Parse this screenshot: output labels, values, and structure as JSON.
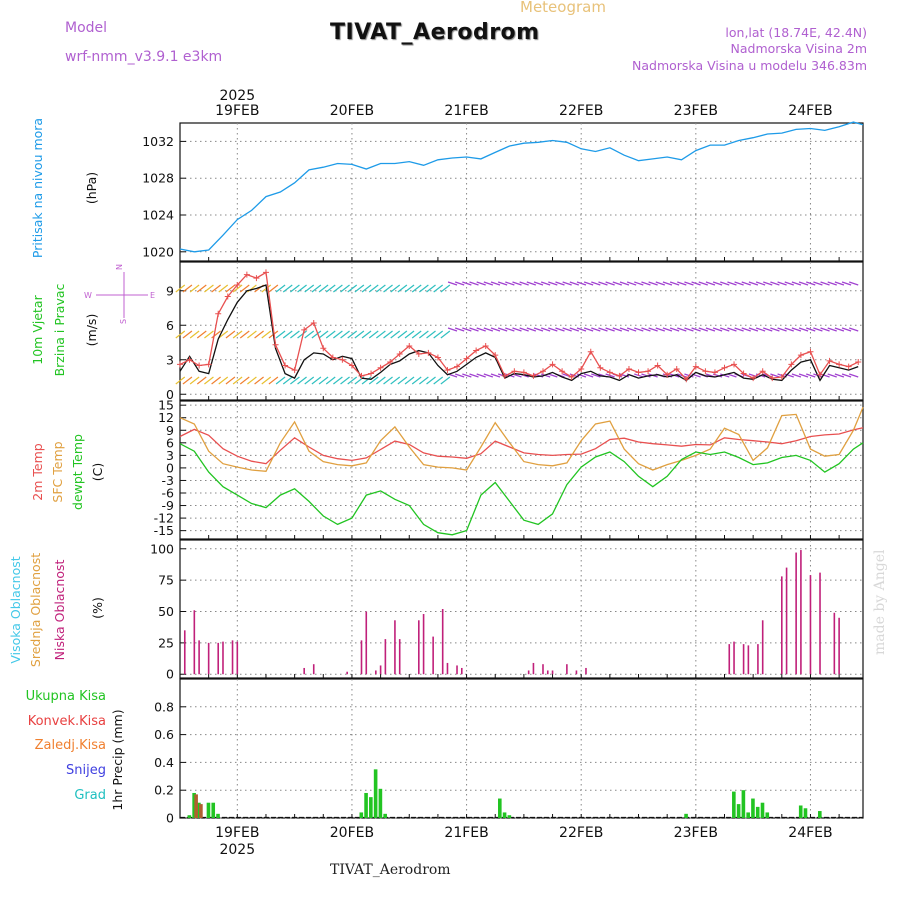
{
  "header": {
    "kind": "Meteogram",
    "title": "TIVAT_Aerodrom",
    "model_label": "Model",
    "model_name": "wrf-nmm_v3.9.1  e3km",
    "lonlat": "lon,lat (18.74E, 42.4N)",
    "nadmorska": "Nadmorska Visina 2m",
    "nadmorska_model": "Nadmorska Visina u modelu 346.83m"
  },
  "footer": {
    "station": "TIVAT_Aerodrom",
    "credit": "made by Angel"
  },
  "time_axis": {
    "year": "2025",
    "days": [
      "19FEB",
      "20FEB",
      "21FEB",
      "22FEB",
      "23FEB",
      "24FEB"
    ],
    "range_hours": [
      -12,
      131
    ]
  },
  "colors": {
    "pressure": "#1e9be8",
    "temp2m": "#e85050",
    "sfc": "#e0a040",
    "dew": "#22c422",
    "wind": "#111111",
    "gust": "#e85050",
    "cloud_high": "#44c8e8",
    "cloud_mid": "#e0a040",
    "cloud_low": "#c0207a",
    "rain": "#22c422",
    "conv": "#e84040",
    "frz": "#f08030",
    "snow": "#4040e0",
    "grad": "#20c0c0"
  },
  "chart_data": [
    {
      "id": "pressure",
      "type": "line",
      "ylabel": "Pritisak na nivou mora",
      "unit": "(hPa)",
      "ylim": [
        1019,
        1034
      ],
      "yticks": [
        1020,
        1024,
        1028,
        1032
      ],
      "series": [
        {
          "name": "pressure",
          "x": [
            -12,
            -9,
            -6,
            -3,
            0,
            3,
            6,
            9,
            12,
            15,
            18,
            21,
            24,
            27,
            30,
            33,
            36,
            39,
            42,
            45,
            48,
            51,
            54,
            57,
            60,
            63,
            66,
            69,
            72,
            75,
            78,
            81,
            84,
            87,
            90,
            93,
            96,
            99,
            102,
            105,
            108,
            111,
            114,
            117,
            120,
            123,
            126,
            129,
            131
          ],
          "y": [
            1020.3,
            1020.0,
            1020.2,
            1021.8,
            1023.5,
            1024.5,
            1026.0,
            1026.5,
            1027.5,
            1028.9,
            1029.2,
            1029.6,
            1029.5,
            1029.0,
            1029.6,
            1029.6,
            1029.8,
            1029.4,
            1030.0,
            1030.2,
            1030.3,
            1030.1,
            1030.8,
            1031.5,
            1031.8,
            1031.9,
            1032.1,
            1031.9,
            1031.2,
            1030.9,
            1031.3,
            1030.5,
            1029.9,
            1030.1,
            1030.3,
            1030.0,
            1031.0,
            1031.6,
            1031.6,
            1032.1,
            1032.4,
            1032.8,
            1032.9,
            1033.3,
            1033.4,
            1033.2,
            1033.6,
            1034.1,
            1033.8
          ]
        }
      ]
    },
    {
      "id": "wind",
      "type": "line",
      "ylabel": "10m Vjetar Brzina i Pravac",
      "unit": "(m/s)",
      "ylim": [
        -0.5,
        11.5
      ],
      "yticks": [
        0,
        3,
        6,
        9
      ],
      "compass": [
        "N",
        "W",
        "E",
        "S"
      ],
      "series": [
        {
          "name": "speed",
          "x": [
            -12,
            -10,
            -8,
            -6,
            -4,
            -2,
            0,
            2,
            4,
            6,
            8,
            10,
            12,
            14,
            16,
            18,
            20,
            22,
            24,
            26,
            28,
            30,
            32,
            34,
            36,
            38,
            40,
            42,
            44,
            46,
            48,
            50,
            52,
            54,
            56,
            58,
            60,
            62,
            64,
            66,
            68,
            70,
            72,
            74,
            76,
            78,
            80,
            82,
            84,
            86,
            88,
            90,
            92,
            94,
            96,
            98,
            100,
            102,
            104,
            106,
            108,
            110,
            112,
            114,
            116,
            118,
            120,
            122,
            124,
            126,
            128,
            130
          ],
          "y": [
            2.0,
            3.3,
            2.0,
            1.8,
            4.8,
            6.5,
            8.0,
            9.0,
            9.2,
            9.5,
            4.0,
            1.8,
            1.4,
            3.0,
            3.6,
            3.5,
            3.0,
            3.3,
            3.1,
            1.4,
            1.3,
            1.9,
            2.6,
            2.9,
            3.5,
            3.8,
            3.6,
            2.5,
            1.7,
            2.0,
            2.6,
            3.2,
            3.6,
            3.2,
            1.4,
            1.8,
            1.7,
            1.5,
            1.6,
            1.9,
            1.5,
            1.2,
            1.8,
            2.0,
            1.6,
            1.5,
            1.2,
            1.7,
            1.4,
            1.6,
            1.7,
            1.5,
            1.7,
            1.2,
            1.9,
            1.6,
            1.5,
            1.7,
            1.9,
            1.4,
            1.3,
            1.7,
            1.3,
            1.2,
            2.1,
            2.8,
            3.0,
            1.2,
            2.5,
            2.3,
            2.1,
            2.4
          ]
        },
        {
          "name": "gust",
          "x": [
            -12,
            -10,
            -8,
            -6,
            -4,
            -2,
            0,
            2,
            4,
            6,
            8,
            10,
            12,
            14,
            16,
            18,
            20,
            22,
            24,
            26,
            28,
            30,
            32,
            34,
            36,
            38,
            40,
            42,
            44,
            46,
            48,
            50,
            52,
            54,
            56,
            58,
            60,
            62,
            64,
            66,
            68,
            70,
            72,
            74,
            76,
            78,
            80,
            82,
            84,
            86,
            88,
            90,
            92,
            94,
            96,
            98,
            100,
            102,
            104,
            106,
            108,
            110,
            112,
            114,
            116,
            118,
            120,
            122,
            124,
            126,
            128,
            130
          ],
          "y": [
            2.6,
            3.0,
            2.5,
            2.6,
            7.0,
            8.5,
            9.5,
            10.4,
            10.1,
            10.6,
            4.3,
            2.5,
            2.1,
            5.6,
            6.2,
            4.0,
            3.2,
            3.0,
            2.5,
            1.6,
            1.8,
            2.3,
            2.8,
            3.5,
            4.2,
            3.5,
            3.6,
            3.2,
            2.1,
            2.4,
            3.1,
            3.8,
            4.2,
            3.4,
            1.6,
            2.0,
            1.9,
            1.6,
            2.0,
            2.6,
            2.0,
            1.5,
            2.2,
            3.7,
            2.3,
            1.9,
            1.6,
            2.2,
            1.9,
            2.0,
            2.5,
            1.7,
            2.2,
            1.3,
            2.4,
            2.0,
            1.9,
            2.3,
            2.6,
            1.8,
            1.4,
            2.0,
            1.4,
            1.5,
            2.6,
            3.4,
            3.7,
            1.7,
            2.9,
            2.6,
            2.4,
            2.8
          ]
        }
      ]
    },
    {
      "id": "temperature",
      "type": "line",
      "ylabel": "2m Temp",
      "ylabel2": "SFC Temp",
      "ylabel3": "dewpt Temp",
      "unit": "(C)",
      "ylim": [
        -17,
        16
      ],
      "yticks": [
        -15,
        -12,
        -9,
        -6,
        -3,
        0,
        3,
        6,
        9,
        12,
        15
      ],
      "series": [
        {
          "name": "2m Temp",
          "x": [
            -12,
            -9,
            -6,
            -3,
            0,
            3,
            6,
            9,
            12,
            15,
            18,
            21,
            24,
            27,
            30,
            33,
            36,
            39,
            42,
            45,
            48,
            51,
            54,
            57,
            60,
            63,
            66,
            69,
            72,
            75,
            78,
            81,
            84,
            87,
            90,
            93,
            96,
            99,
            102,
            105,
            108,
            111,
            114,
            117,
            120,
            123,
            126,
            129,
            131
          ],
          "y": [
            7.5,
            9.2,
            7.8,
            4.6,
            2.8,
            1.6,
            1.0,
            4.2,
            7.2,
            5.0,
            3.0,
            2.2,
            1.8,
            2.4,
            4.4,
            6.4,
            5.6,
            3.6,
            2.8,
            2.6,
            2.3,
            3.4,
            6.4,
            5.0,
            3.6,
            3.2,
            3.0,
            3.2,
            3.3,
            4.6,
            6.8,
            7.1,
            6.2,
            5.8,
            5.5,
            5.2,
            5.6,
            5.5,
            7.2,
            6.8,
            6.5,
            6.2,
            5.8,
            6.5,
            7.5,
            7.9,
            8.1,
            9.1,
            9.6
          ]
        },
        {
          "name": "SFC Temp",
          "x": [
            -12,
            -9,
            -6,
            -3,
            0,
            3,
            6,
            9,
            12,
            15,
            18,
            21,
            24,
            27,
            30,
            33,
            36,
            39,
            42,
            45,
            48,
            51,
            54,
            57,
            60,
            63,
            66,
            69,
            72,
            75,
            78,
            81,
            84,
            87,
            90,
            93,
            96,
            99,
            102,
            105,
            108,
            111,
            114,
            117,
            120,
            123,
            126,
            129,
            131
          ],
          "y": [
            12.0,
            10.5,
            4.0,
            1.0,
            0.2,
            -0.5,
            -0.8,
            6.0,
            11.0,
            4.0,
            1.5,
            0.8,
            0.5,
            1.2,
            6.5,
            9.8,
            5.0,
            0.8,
            0.2,
            0.0,
            -0.5,
            5.0,
            10.8,
            6.0,
            1.5,
            0.8,
            0.5,
            1.2,
            6.5,
            10.5,
            11.2,
            4.5,
            1.0,
            -0.5,
            0.8,
            1.8,
            3.0,
            4.5,
            9.5,
            8.0,
            1.8,
            4.8,
            12.5,
            12.8,
            4.5,
            2.8,
            3.2,
            9.0,
            14.5
          ]
        },
        {
          "name": "Dew Temp",
          "x": [
            -12,
            -9,
            -6,
            -3,
            0,
            3,
            6,
            9,
            12,
            15,
            18,
            21,
            24,
            27,
            30,
            33,
            36,
            39,
            42,
            45,
            48,
            51,
            54,
            57,
            60,
            63,
            66,
            69,
            72,
            75,
            78,
            81,
            84,
            87,
            90,
            93,
            96,
            99,
            102,
            105,
            108,
            111,
            114,
            117,
            120,
            123,
            126,
            129,
            131
          ],
          "y": [
            5.8,
            4.0,
            -1.0,
            -4.5,
            -6.5,
            -8.5,
            -9.5,
            -6.5,
            -5.0,
            -8.0,
            -11.5,
            -13.5,
            -12.0,
            -6.5,
            -5.5,
            -7.5,
            -9.0,
            -13.5,
            -15.5,
            -16.0,
            -15.0,
            -6.5,
            -3.5,
            -8.0,
            -12.5,
            -13.5,
            -11.0,
            -4.0,
            0.2,
            2.6,
            3.8,
            1.5,
            -2.0,
            -4.5,
            -2.0,
            2.0,
            3.8,
            3.2,
            3.8,
            2.5,
            0.8,
            1.2,
            2.5,
            3.0,
            1.8,
            -1.0,
            1.0,
            4.5,
            6.0
          ]
        }
      ]
    },
    {
      "id": "clouds",
      "type": "bar",
      "ylabel": "Visoka Oblacnost",
      "ylabel2": "Srednja Oblacnost",
      "ylabel3": "Niska Oblacnost",
      "unit": "(%)",
      "ylim": [
        -3,
        107
      ],
      "yticks": [
        0,
        25,
        50,
        75,
        100
      ],
      "series": [
        {
          "name": "low",
          "x": [
            -11,
            -9,
            -8,
            -6,
            -4,
            -3,
            -1,
            0,
            14,
            16,
            23,
            26,
            27,
            29,
            30,
            31,
            33,
            34,
            38,
            39,
            41,
            43,
            44,
            46,
            47,
            61,
            62,
            64,
            65,
            66,
            69,
            71,
            73,
            103,
            104,
            106,
            107,
            109,
            110,
            114,
            115,
            117,
            118,
            120,
            122,
            125,
            126
          ],
          "y": [
            35,
            51,
            27,
            25,
            25,
            26,
            27,
            26,
            5,
            8,
            2,
            27,
            50,
            3,
            7,
            28,
            43,
            28,
            43,
            48,
            30,
            52,
            9,
            7,
            5,
            3,
            9,
            8,
            3,
            3,
            8,
            3,
            5,
            24,
            26,
            24,
            23,
            24,
            43,
            78,
            85,
            97,
            99,
            79,
            81,
            49,
            45
          ]
        }
      ]
    },
    {
      "id": "precip",
      "type": "bar",
      "ylabel": "1hr Precip",
      "unit": "(mm)",
      "legend": [
        "Ukupna Kisa",
        "Konvek.Kisa",
        "Zaledj.Kisa",
        "Snijeg",
        "Grad"
      ],
      "ylim": [
        0,
        1.0
      ],
      "yticks": [
        0,
        0.2,
        0.4,
        0.6,
        0.8
      ],
      "series": [
        {
          "name": "Ukupna Kisa",
          "x": [
            -10,
            -9,
            -8,
            -6,
            -5,
            -4,
            26,
            27,
            28,
            29,
            30,
            31,
            55,
            56,
            57,
            94,
            104,
            105,
            106,
            107,
            108,
            109,
            110,
            111,
            118,
            119,
            122
          ],
          "y": [
            0.02,
            0.18,
            0.11,
            0.11,
            0.11,
            0.03,
            0.04,
            0.18,
            0.15,
            0.35,
            0.21,
            0.03,
            0.14,
            0.04,
            0.02,
            0.03,
            0.19,
            0.1,
            0.2,
            0.04,
            0.14,
            0.08,
            0.11,
            0.04,
            0.09,
            0.07,
            0.05
          ]
        },
        {
          "name": "Konvek.Kisa",
          "x": [
            -9,
            -8
          ],
          "y": [
            0.17,
            0.1
          ]
        }
      ]
    }
  ]
}
